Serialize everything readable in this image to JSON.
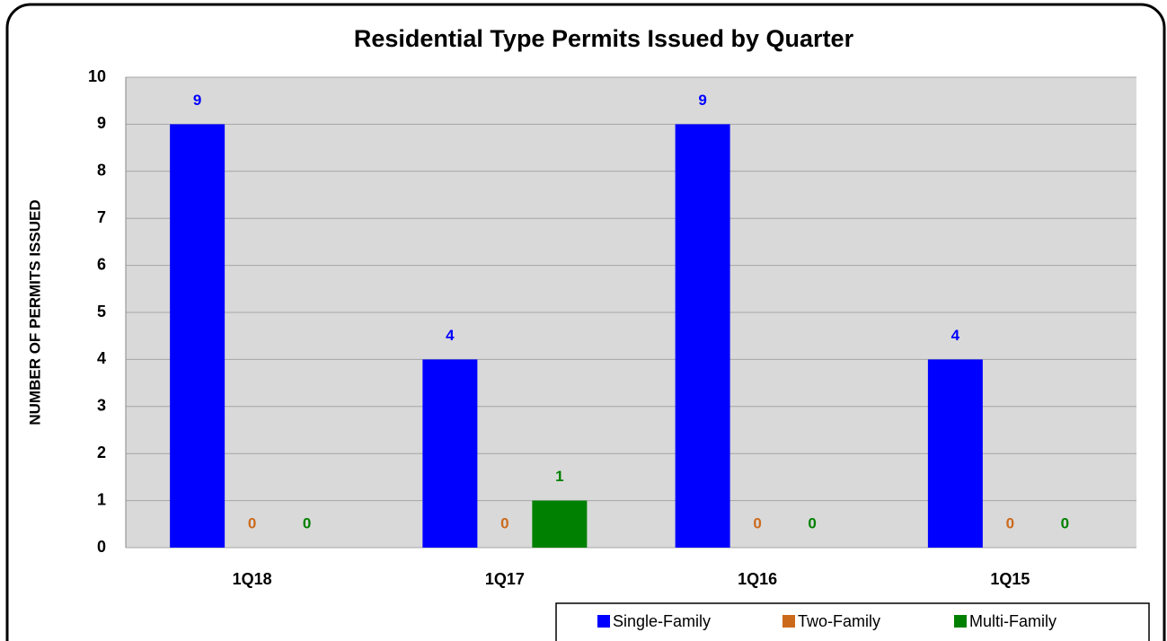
{
  "chart_data": {
    "type": "bar",
    "title": "Residential Type Permits Issued by Quarter",
    "y_label": "NUMBER OF PERMITS ISSUED",
    "categories": [
      "1Q18",
      "1Q17",
      "1Q16",
      "1Q15"
    ],
    "series": [
      {
        "name": "Single-Family",
        "color": "#0000ff",
        "values": [
          9,
          4,
          9,
          4
        ]
      },
      {
        "name": "Two-Family",
        "color": "#cc6a1c",
        "values": [
          0,
          0,
          0,
          0
        ]
      },
      {
        "name": "Multi-Family",
        "color": "#008000",
        "values": [
          0,
          1,
          0,
          0
        ]
      }
    ],
    "ylim": [
      0,
      10
    ],
    "yticks": [
      0,
      1,
      2,
      3,
      4,
      5,
      6,
      7,
      8,
      9,
      10
    ],
    "grid": true,
    "legend": "bottom-right"
  }
}
